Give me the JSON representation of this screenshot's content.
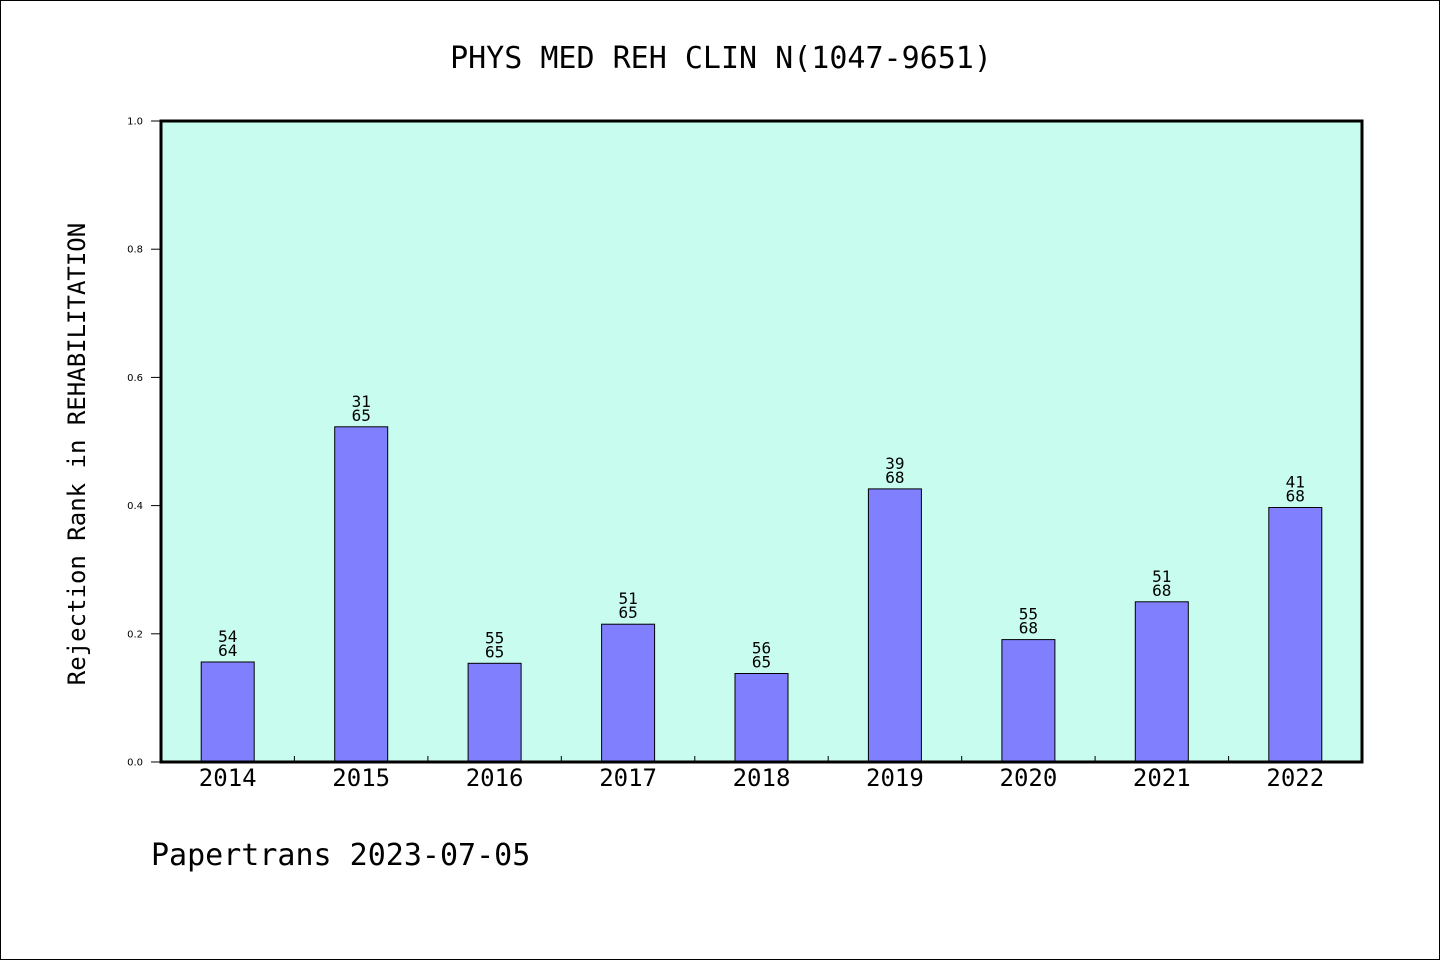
{
  "chart_data": {
    "type": "bar",
    "title": "PHYS MED REH CLIN N(1047-9651)",
    "xlabel": "",
    "ylabel": "Rejection Rank in REHABILITATION",
    "ylim": [
      0.0,
      1.0
    ],
    "yticks": [
      "0.0",
      "0.2",
      "0.4",
      "0.6",
      "0.8",
      "1.0"
    ],
    "ytick_values": [
      0.0,
      0.2,
      0.4,
      0.6,
      0.8,
      1.0
    ],
    "categories": [
      "2014",
      "2015",
      "2016",
      "2017",
      "2018",
      "2019",
      "2020",
      "2021",
      "2022"
    ],
    "values": [
      0.156,
      0.523,
      0.154,
      0.215,
      0.138,
      0.426,
      0.191,
      0.25,
      0.397
    ],
    "label_top": [
      "54",
      "31",
      "55",
      "51",
      "56",
      "39",
      "55",
      "51",
      "41"
    ],
    "label_bottom": [
      "64",
      "65",
      "65",
      "65",
      "65",
      "68",
      "68",
      "68",
      "68"
    ],
    "grid": false,
    "colors": {
      "plot_background": "#c8fcee",
      "bar_fill": "#8080ff",
      "bar_edge": "#000000"
    }
  },
  "footer": {
    "text": "Papertrans 2023-07-05"
  }
}
